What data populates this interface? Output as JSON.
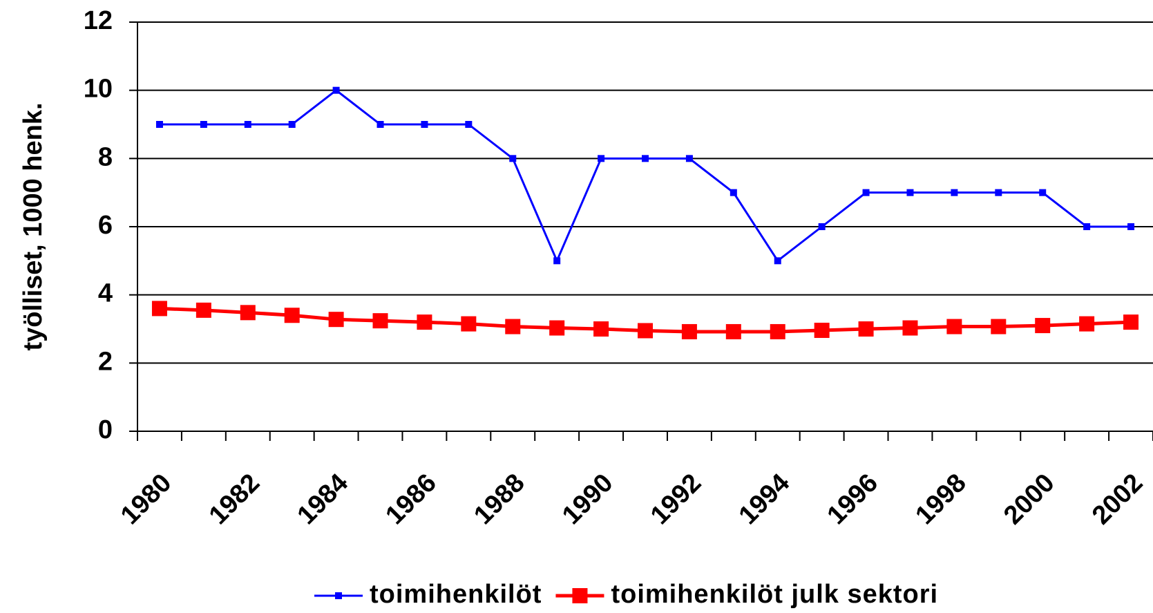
{
  "chart_data": {
    "type": "line",
    "y_label": "työlliset, 1000 henk.",
    "categories": [
      "1980",
      null,
      "1982",
      null,
      "1984",
      null,
      "1986",
      null,
      "1988",
      null,
      "1990",
      null,
      "1992",
      null,
      "1994",
      null,
      "1996",
      null,
      "1998",
      null,
      "2000",
      null,
      "2002"
    ],
    "series": [
      {
        "name": "toimihenkilöt",
        "color": "#0000ff",
        "values": [
          9,
          9,
          9,
          9,
          10,
          9,
          9,
          9,
          8,
          5,
          8,
          8,
          8,
          7,
          5,
          6,
          7,
          7,
          7,
          7,
          7,
          6,
          6
        ]
      },
      {
        "name": "toimihenkilöt julk sektori",
        "color": "#ff0000",
        "values": [
          3.6,
          3.55,
          3.48,
          3.4,
          3.28,
          3.24,
          3.2,
          3.15,
          3.07,
          3.03,
          3.0,
          2.95,
          2.92,
          2.92,
          2.92,
          2.96,
          3.0,
          3.03,
          3.07,
          3.07,
          3.1,
          3.15,
          3.2
        ]
      }
    ],
    "ylim": [
      0,
      12
    ],
    "yticks": [
      0,
      2,
      4,
      6,
      8,
      10,
      12
    ],
    "grid": true,
    "legend": "bottom"
  }
}
